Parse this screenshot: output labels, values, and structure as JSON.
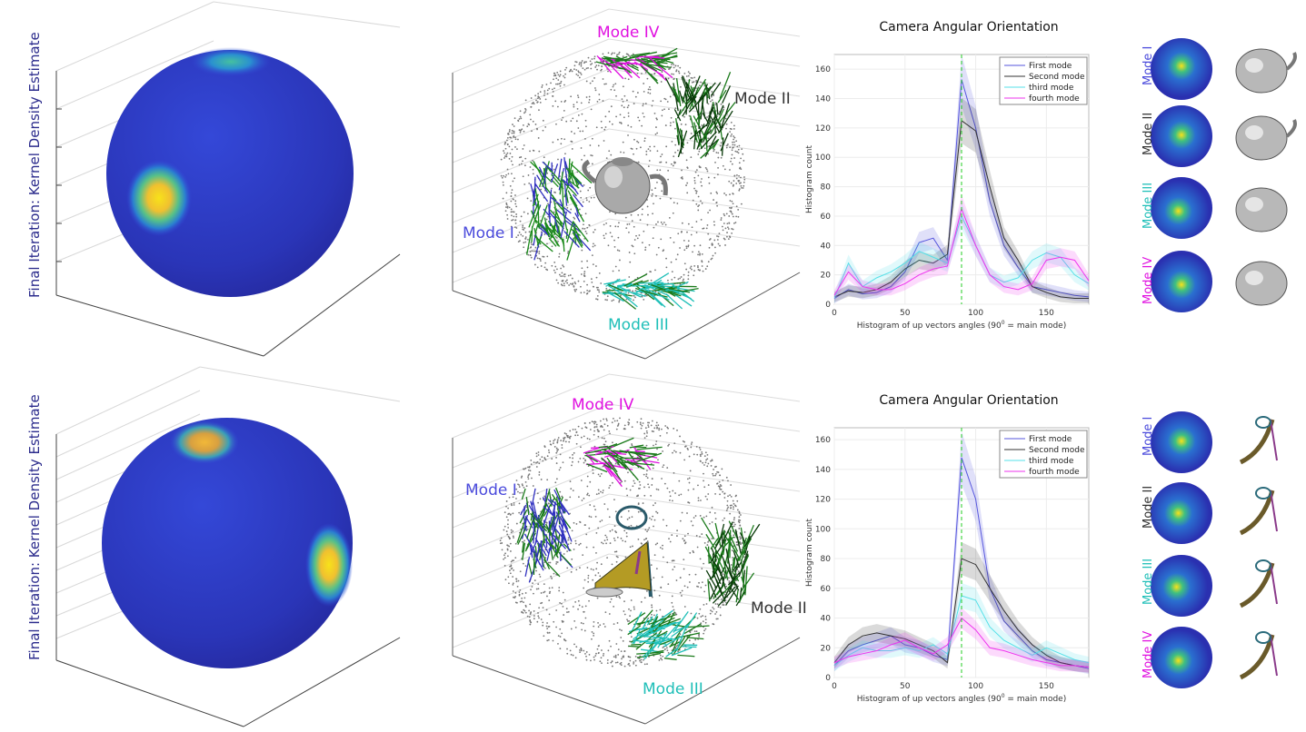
{
  "colors": {
    "mode1": "#4b4bdc",
    "mode2": "#333333",
    "mode3": "#1fbfb8",
    "mode4": "#e010e0",
    "kde_text": "#2b2b8c",
    "vline": "#22cc22"
  },
  "rows": [
    {
      "kde_title": "Final Iteration: Kernel Density Estimate",
      "scatter_labels": {
        "m1": "Mode I",
        "m2": "Mode II",
        "m3": "Mode III",
        "m4": "Mode IV"
      },
      "object": "teapot",
      "thumb_labels": [
        "Mode I",
        "Mode II",
        "Mode III",
        "Mode IV"
      ]
    },
    {
      "kde_title": "Final Iteration: Kernel Density Estimate",
      "scatter_labels": {
        "m1": "Mode I",
        "m2": "Mode II",
        "m3": "Mode III",
        "m4": "Mode IV"
      },
      "object": "high-heel-sandal",
      "thumb_labels": [
        "Mode I",
        "Mode II",
        "Mode III",
        "Mode IV"
      ]
    }
  ],
  "chart_data": [
    {
      "type": "line",
      "title": "Camera Angular Orientation",
      "xlabel": "Histogram of up vectors angles (90",
      "xlabel_sup": "0",
      "xlabel_tail": " = main mode)",
      "ylabel": "Histogram count",
      "xlim": [
        0,
        180
      ],
      "ylim": [
        0,
        170
      ],
      "xticks": [
        0,
        50,
        100,
        150
      ],
      "yticks": [
        0,
        20,
        40,
        60,
        80,
        100,
        120,
        140,
        160
      ],
      "vline_x": 90,
      "legend_position": "top-right",
      "x": [
        0,
        10,
        20,
        30,
        40,
        50,
        60,
        70,
        80,
        90,
        100,
        110,
        120,
        130,
        140,
        150,
        160,
        170,
        180
      ],
      "series": [
        {
          "name": "First mode",
          "color": "#5555dd",
          "values": [
            4,
            10,
            7,
            8,
            12,
            22,
            42,
            45,
            30,
            153,
            120,
            70,
            40,
            25,
            12,
            10,
            8,
            6,
            5
          ]
        },
        {
          "name": "Second mode",
          "color": "#333333",
          "values": [
            5,
            9,
            8,
            10,
            15,
            24,
            30,
            28,
            34,
            125,
            118,
            80,
            45,
            30,
            12,
            8,
            5,
            4,
            4
          ]
        },
        {
          "name": "third mode",
          "color": "#55e0e8",
          "values": [
            4,
            28,
            12,
            18,
            22,
            28,
            36,
            32,
            28,
            60,
            40,
            20,
            15,
            18,
            30,
            35,
            32,
            20,
            14
          ]
        },
        {
          "name": "fourth mode",
          "color": "#ee33ee",
          "values": [
            6,
            22,
            12,
            10,
            10,
            14,
            20,
            24,
            26,
            65,
            40,
            20,
            12,
            10,
            14,
            30,
            32,
            30,
            16
          ]
        }
      ]
    },
    {
      "type": "line",
      "title": "Camera Angular Orientation",
      "xlabel": "Histogram of up vectors angles (90",
      "xlabel_sup": "0",
      "xlabel_tail": " = main mode)",
      "ylabel": "Histogram count",
      "xlim": [
        0,
        180
      ],
      "ylim": [
        0,
        168
      ],
      "xticks": [
        0,
        50,
        100,
        150
      ],
      "yticks": [
        0,
        20,
        40,
        60,
        80,
        100,
        120,
        140,
        160
      ],
      "vline_x": 90,
      "legend_position": "top-right",
      "x": [
        0,
        10,
        20,
        30,
        40,
        50,
        60,
        70,
        80,
        90,
        100,
        110,
        120,
        130,
        140,
        150,
        160,
        170,
        180
      ],
      "series": [
        {
          "name": "First mode",
          "color": "#5555dd",
          "values": [
            8,
            18,
            22,
            25,
            28,
            22,
            20,
            15,
            12,
            148,
            120,
            60,
            38,
            28,
            18,
            12,
            10,
            8,
            6
          ]
        },
        {
          "name": "Second mode",
          "color": "#333333",
          "values": [
            10,
            22,
            28,
            30,
            28,
            26,
            22,
            18,
            10,
            80,
            76,
            60,
            45,
            32,
            22,
            15,
            10,
            8,
            7
          ]
        },
        {
          "name": "third mode",
          "color": "#55e0e8",
          "values": [
            8,
            15,
            20,
            18,
            18,
            20,
            18,
            22,
            16,
            55,
            52,
            34,
            25,
            20,
            15,
            20,
            16,
            12,
            10
          ]
        },
        {
          "name": "fourth mode",
          "color": "#ee33ee",
          "values": [
            10,
            14,
            16,
            18,
            22,
            25,
            20,
            16,
            22,
            40,
            32,
            20,
            18,
            15,
            12,
            10,
            8,
            8,
            7
          ]
        }
      ]
    }
  ]
}
